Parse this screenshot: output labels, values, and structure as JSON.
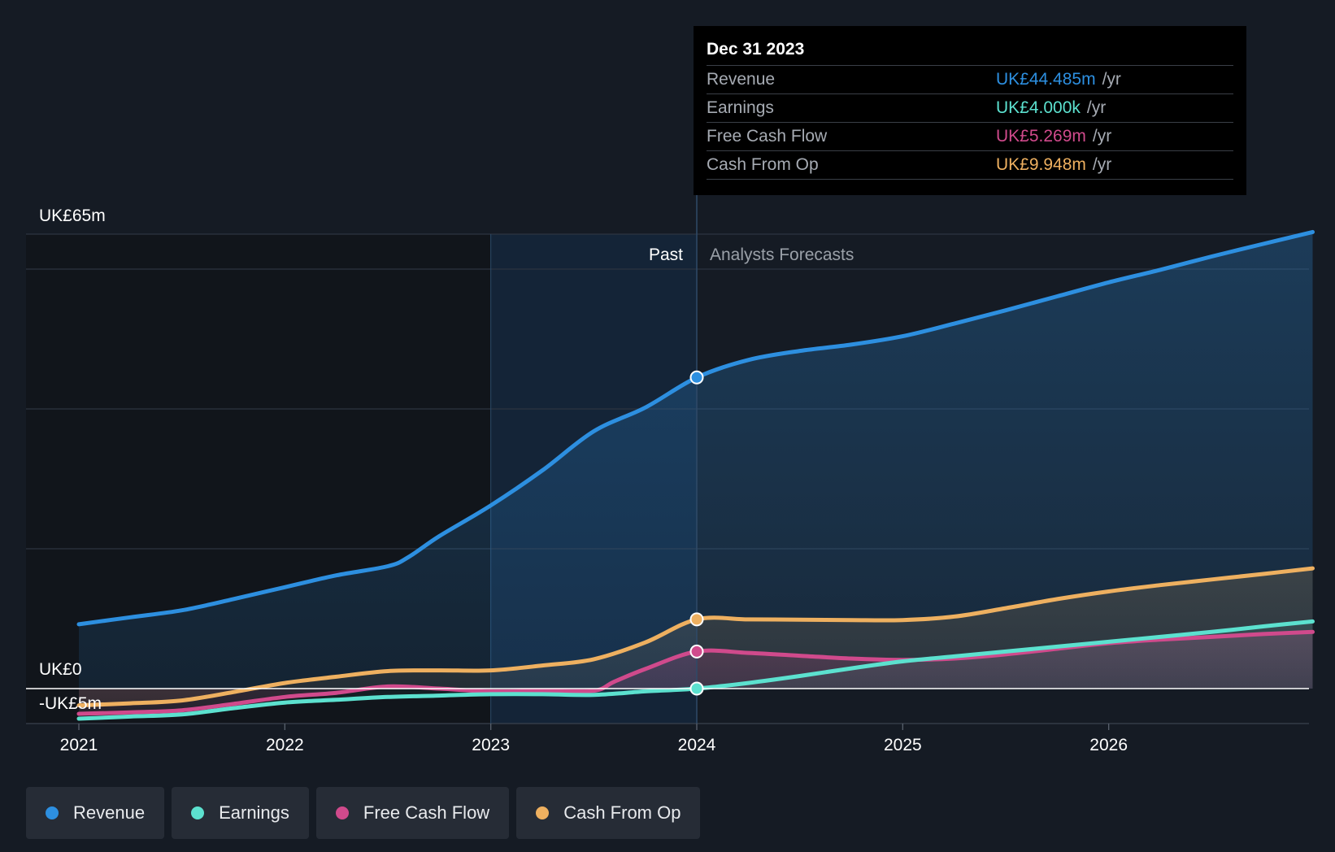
{
  "tooltip": {
    "date": "Dec 31 2023",
    "rows": [
      {
        "label": "Revenue",
        "value": "UK£44.485m",
        "unit": "/yr",
        "color": "#2d8fe0"
      },
      {
        "label": "Earnings",
        "value": "UK£4.000k",
        "unit": "/yr",
        "color": "#5ce1cf"
      },
      {
        "label": "Free Cash Flow",
        "value": "UK£5.269m",
        "unit": "/yr",
        "color": "#d04a8c"
      },
      {
        "label": "Cash From Op",
        "value": "UK£9.948m",
        "unit": "/yr",
        "color": "#eeb060"
      }
    ]
  },
  "legend": [
    {
      "label": "Revenue",
      "color": "#2d8fe0"
    },
    {
      "label": "Earnings",
      "color": "#5ce1cf"
    },
    {
      "label": "Free Cash Flow",
      "color": "#d04a8c"
    },
    {
      "label": "Cash From Op",
      "color": "#eeb060"
    }
  ],
  "chart_data": {
    "type": "area",
    "title": "",
    "currency": "UK£",
    "y_top_label": "UK£65m",
    "y_zero_label": "UK£0",
    "y_bottom_label": "-UK£5m",
    "ylim": [
      -5,
      65
    ],
    "xlim": [
      2020.75,
      2026.99
    ],
    "x_ticks": [
      2021,
      2022,
      2023,
      2024,
      2025,
      2026
    ],
    "x_tick_labels": [
      "2021",
      "2022",
      "2023",
      "2024",
      "2025",
      "2026"
    ],
    "past_label": "Past",
    "forecast_label": "Analysts Forecasts",
    "divider_x": 2024.0,
    "highlight_start_x": 2023.0,
    "series": [
      {
        "name": "Revenue",
        "color": "#2d8fe0",
        "points": [
          [
            2021.0,
            9.2
          ],
          [
            2021.25,
            10.2
          ],
          [
            2021.5,
            11.2
          ],
          [
            2021.75,
            12.8
          ],
          [
            2022.0,
            14.5
          ],
          [
            2022.25,
            16.2
          ],
          [
            2022.5,
            17.5
          ],
          [
            2022.6,
            18.8
          ],
          [
            2022.75,
            21.8
          ],
          [
            2023.0,
            26.2
          ],
          [
            2023.25,
            31.2
          ],
          [
            2023.5,
            36.8
          ],
          [
            2023.75,
            40.2
          ],
          [
            2024.0,
            44.5
          ],
          [
            2024.25,
            47.0
          ],
          [
            2024.5,
            48.3
          ],
          [
            2024.75,
            49.2
          ],
          [
            2025.0,
            50.4
          ],
          [
            2025.25,
            52.2
          ],
          [
            2025.5,
            54.1
          ],
          [
            2025.75,
            56.1
          ],
          [
            2026.0,
            58.1
          ],
          [
            2026.25,
            59.9
          ],
          [
            2026.5,
            61.8
          ],
          [
            2026.75,
            63.6
          ],
          [
            2026.99,
            65.3
          ]
        ]
      },
      {
        "name": "Earnings",
        "color": "#5ce1cf",
        "points": [
          [
            2021.0,
            -4.3
          ],
          [
            2021.25,
            -4.0
          ],
          [
            2021.5,
            -3.7
          ],
          [
            2021.75,
            -2.8
          ],
          [
            2022.0,
            -2.0
          ],
          [
            2022.25,
            -1.6
          ],
          [
            2022.5,
            -1.2
          ],
          [
            2022.75,
            -1.0
          ],
          [
            2023.0,
            -0.8
          ],
          [
            2023.25,
            -0.8
          ],
          [
            2023.5,
            -0.9
          ],
          [
            2023.75,
            -0.4
          ],
          [
            2024.0,
            0.0
          ],
          [
            2024.25,
            0.8
          ],
          [
            2024.5,
            1.8
          ],
          [
            2024.75,
            2.9
          ],
          [
            2025.0,
            3.9
          ],
          [
            2025.25,
            4.6
          ],
          [
            2025.5,
            5.3
          ],
          [
            2025.75,
            6.0
          ],
          [
            2026.0,
            6.7
          ],
          [
            2026.25,
            7.4
          ],
          [
            2026.5,
            8.1
          ],
          [
            2026.75,
            8.9
          ],
          [
            2026.99,
            9.6
          ]
        ]
      },
      {
        "name": "Free Cash Flow",
        "color": "#d04a8c",
        "points": [
          [
            2021.0,
            -3.6
          ],
          [
            2021.25,
            -3.4
          ],
          [
            2021.5,
            -3.1
          ],
          [
            2021.75,
            -2.2
          ],
          [
            2022.0,
            -1.2
          ],
          [
            2022.25,
            -0.6
          ],
          [
            2022.5,
            0.3
          ],
          [
            2022.75,
            0.0
          ],
          [
            2023.0,
            -0.4
          ],
          [
            2023.25,
            -0.3
          ],
          [
            2023.5,
            -0.3
          ],
          [
            2023.6,
            1.0
          ],
          [
            2023.75,
            2.8
          ],
          [
            2024.0,
            5.3
          ],
          [
            2024.25,
            5.1
          ],
          [
            2024.5,
            4.7
          ],
          [
            2024.75,
            4.3
          ],
          [
            2025.0,
            4.1
          ],
          [
            2025.25,
            4.3
          ],
          [
            2025.5,
            4.9
          ],
          [
            2025.75,
            5.7
          ],
          [
            2026.0,
            6.5
          ],
          [
            2026.25,
            7.0
          ],
          [
            2026.5,
            7.4
          ],
          [
            2026.75,
            7.8
          ],
          [
            2026.99,
            8.1
          ]
        ]
      },
      {
        "name": "Cash From Op",
        "color": "#eeb060",
        "points": [
          [
            2021.0,
            -2.4
          ],
          [
            2021.25,
            -2.1
          ],
          [
            2021.5,
            -1.7
          ],
          [
            2021.75,
            -0.5
          ],
          [
            2022.0,
            0.8
          ],
          [
            2022.25,
            1.7
          ],
          [
            2022.5,
            2.5
          ],
          [
            2022.75,
            2.6
          ],
          [
            2023.0,
            2.6
          ],
          [
            2023.25,
            3.3
          ],
          [
            2023.5,
            4.2
          ],
          [
            2023.75,
            6.6
          ],
          [
            2024.0,
            9.9
          ],
          [
            2024.25,
            9.9
          ],
          [
            2024.5,
            9.85
          ],
          [
            2024.75,
            9.8
          ],
          [
            2025.0,
            9.8
          ],
          [
            2025.25,
            10.3
          ],
          [
            2025.5,
            11.5
          ],
          [
            2025.75,
            12.8
          ],
          [
            2026.0,
            13.9
          ],
          [
            2026.25,
            14.8
          ],
          [
            2026.5,
            15.6
          ],
          [
            2026.75,
            16.4
          ],
          [
            2026.99,
            17.2
          ]
        ]
      }
    ],
    "markers_at_x": 2024.0
  }
}
